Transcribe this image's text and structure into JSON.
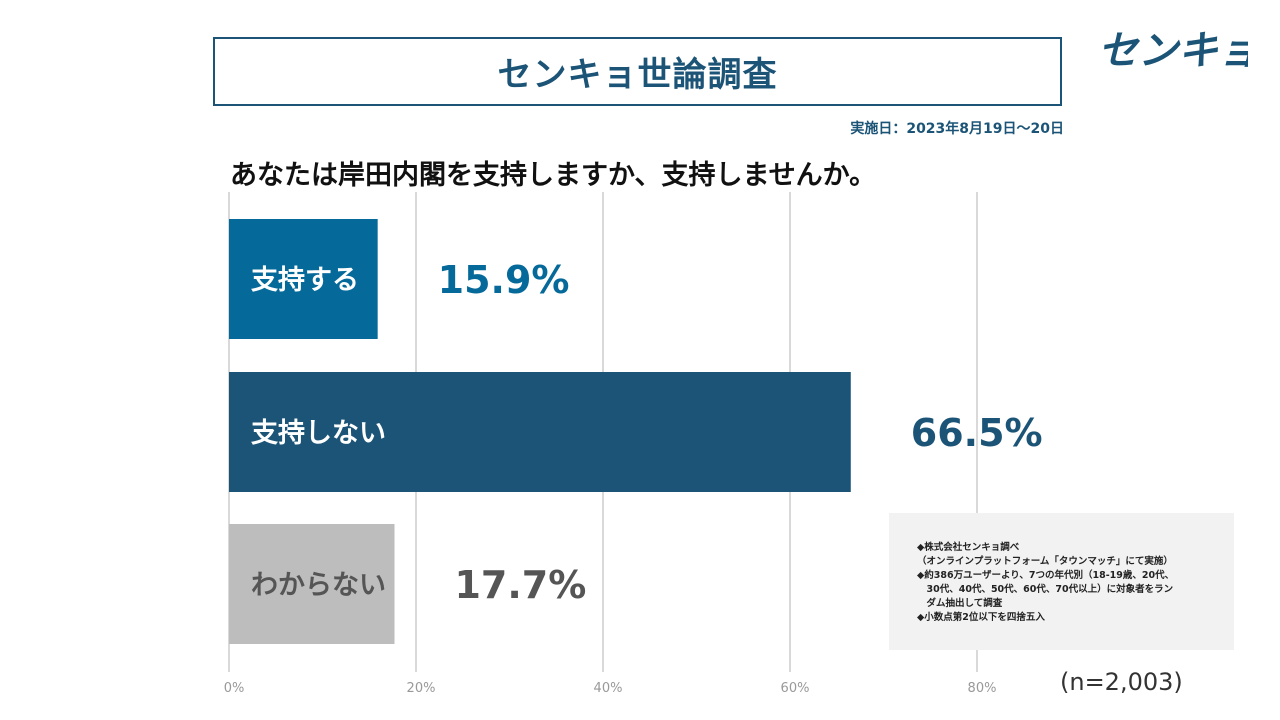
{
  "header": {
    "title": "センキョ世論調査",
    "logo_text": "センキョ",
    "date": "実施日：2023年8月19日～20日"
  },
  "question": "あなたは岸田内閣を支持しますか、支持しませんか。",
  "chart_data": {
    "type": "bar",
    "orientation": "horizontal",
    "categories": [
      "支持する",
      "支持しない",
      "わからない"
    ],
    "values": [
      15.9,
      66.5,
      17.7
    ],
    "value_labels": [
      "15.9%",
      "66.5%",
      "17.7%"
    ],
    "colors": [
      "#05699a",
      "#1b5476",
      "#bdbdbd"
    ],
    "label_colors": [
      "#05699a",
      "#1b5476",
      "#555555"
    ],
    "xlim": [
      0,
      80
    ],
    "xticks": [
      "0%",
      "20%",
      "40%",
      "60%",
      "80%"
    ],
    "grid": true
  },
  "notes": [
    "◆株式会社センキョ調べ",
    "（オンラインプラットフォーム「タウンマッチ」にて実施）",
    "◆約386万ユーザーより、7つの年代別（18-19歳、20代、",
    "　30代、40代、50代、60代、70代以上）に対象者をラン",
    "　ダム抽出して調査",
    "◆小数点第2位以下を四捨五入"
  ],
  "sample_size": "(n=2,003)",
  "colors": {
    "brand_dark": "#1b5476",
    "brand_mid": "#05699a",
    "gray": "#bdbdbd"
  }
}
